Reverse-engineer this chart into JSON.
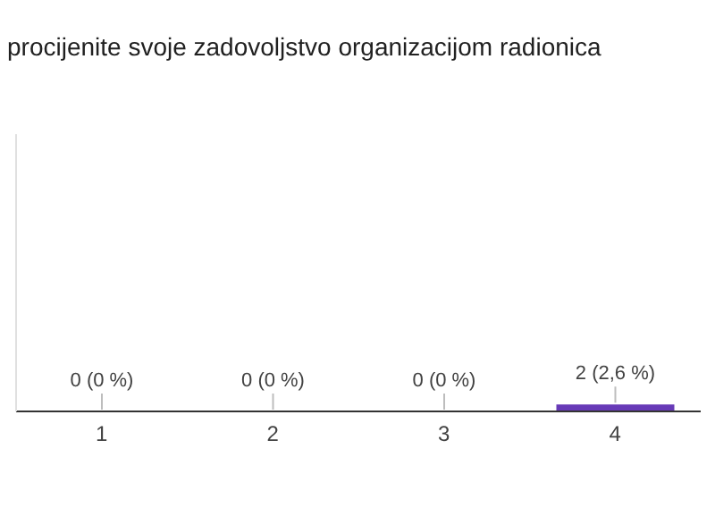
{
  "chart_data": {
    "type": "bar",
    "title": "procijenite svoje zadovoljstvo organizacijom radionica",
    "categories": [
      "1",
      "2",
      "3",
      "4"
    ],
    "values": [
      0,
      0,
      0,
      2
    ],
    "value_labels": [
      "0 (0 %)",
      "0 (0 %)",
      "0 (0 %)",
      "2 (2,6 %)"
    ],
    "color": "#673ab7",
    "ylim": [
      0,
      80
    ],
    "tick_labels": "x",
    "legend": false
  }
}
